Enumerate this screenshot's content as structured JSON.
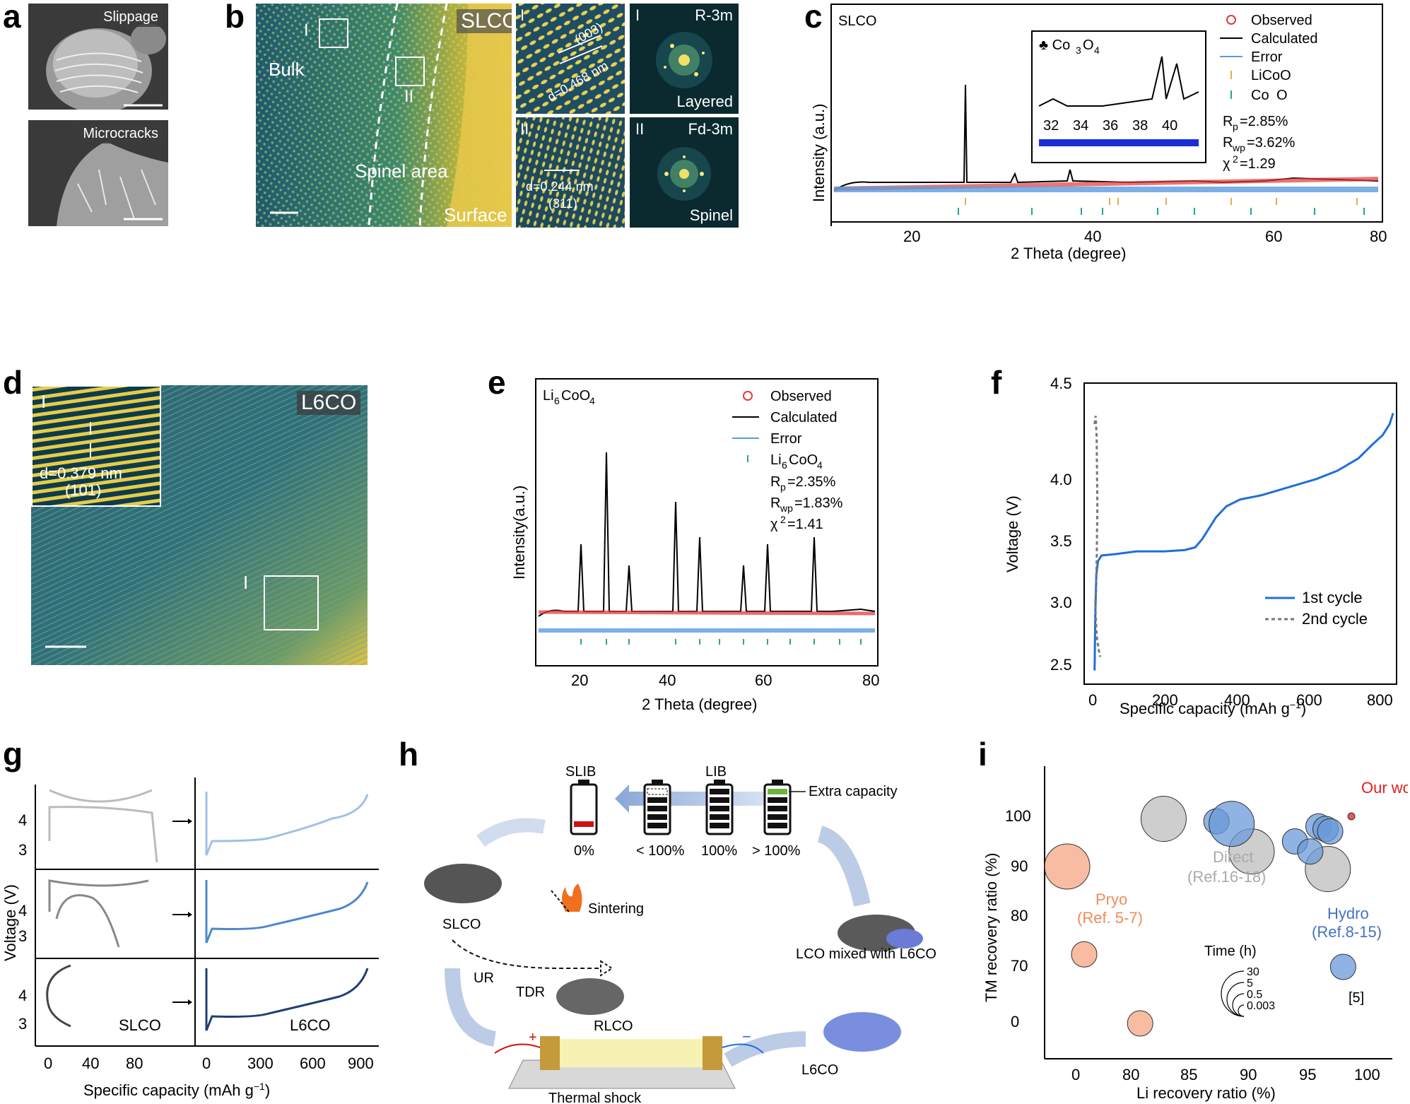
{
  "panels": {
    "a": {
      "letter": "a",
      "top_label": "Slippage",
      "bottom_label": "Microcracks"
    },
    "b": {
      "letter": "b",
      "main_label": "SLCO",
      "bulk": "Bulk",
      "spinel_area": "Spinel area",
      "surface": "Surface",
      "box_I": "I",
      "box_II": "II",
      "inset_I": {
        "roman": "I",
        "plane": "(003)",
        "d": "d=0.468 nm"
      },
      "inset_II": {
        "roman": "II",
        "plane": "(311)",
        "d": "d=0.244 nm"
      },
      "fft_I": {
        "roman": "I",
        "group": "R-3m",
        "type": "Layered"
      },
      "fft_II": {
        "roman": "II",
        "group": "Fd-3m",
        "type": "Spinel"
      }
    },
    "c": {
      "letter": "c",
      "sample": "SLCO",
      "ylabel": "Intensity (a.u.)",
      "xlabel": "2 Theta (degree)",
      "legend": [
        "Observed",
        "Calculated",
        "Error",
        "LiCoO",
        "Co",
        "O"
      ],
      "stats": [
        "R",
        "p",
        "=2.85%",
        "R",
        "wp",
        "=3.62%",
        "χ",
        "2",
        "=1.29"
      ],
      "inset_title": "♣ Co",
      "inset_title_sub1": "3",
      "inset_title_O": "O",
      "inset_title_sub2": "4",
      "inset_xticks": [
        "32",
        "34",
        "36",
        "38",
        "40"
      ],
      "xticks": [
        "20",
        "40",
        "60",
        "80"
      ],
      "club": "♣"
    },
    "d": {
      "letter": "d",
      "main_label": "L6CO",
      "inset_roman": "I",
      "d": "d=0.379 nm",
      "plane": "(101)",
      "box_label": "I"
    },
    "e": {
      "letter": "e",
      "sample": "Li",
      "sample_sub1": "6",
      "sample_mid": "CoO",
      "sample_sub2": "4",
      "ylabel": "Intensity(a.u.)",
      "xlabel": "2 Theta (degree)",
      "legend": [
        "Observed",
        "Calculated",
        "Error"
      ],
      "legend_phase": "Li",
      "legend_phase_sub1": "6",
      "legend_phase_mid": "CoO",
      "legend_phase_sub2": "4",
      "stats": [
        "R",
        "p",
        "=2.35%",
        "R",
        "wp",
        "=1.83%",
        "χ",
        "2",
        "=1.41"
      ],
      "xticks": [
        "20",
        "40",
        "60",
        "80"
      ]
    },
    "f": {
      "letter": "f",
      "ylabel": "Voltage (V)",
      "xlabel": "Specific capacity (mAh g",
      "xlabel_sup": "−1",
      "xlabel_end": ")",
      "legend": [
        "1st cycle",
        "2nd cycle"
      ],
      "xticks": [
        "0",
        "200",
        "400",
        "600",
        "800"
      ],
      "yticks": [
        "2.5",
        "3.0",
        "3.5",
        "4.0",
        "4.5"
      ]
    },
    "g": {
      "letter": "g",
      "ylabel": "Voltage (V)",
      "xlabel": "Specific capacity (mAh g",
      "xlabel_sup": "−1",
      "xlabel_end": ")",
      "left_xticks": [
        "0",
        "40",
        "80"
      ],
      "right_xticks": [
        "0",
        "300",
        "600",
        "900"
      ],
      "yticks": [
        "3",
        "4"
      ],
      "slco": "SLCO",
      "l6co": "L6CO"
    },
    "h": {
      "letter": "h",
      "slib": "SLIB",
      "lib": "LIB",
      "extra": "Extra capacity",
      "pct": [
        "0%",
        "< 100%",
        "100%",
        "> 100%"
      ],
      "slco": "SLCO",
      "sintering": "Sintering",
      "tdr": "TDR",
      "rlco": "RLCO",
      "ur": "UR",
      "mixed": "LCO mixed with L6CO",
      "l6co": "L6CO",
      "thermal": "Thermal shock",
      "plus": "+",
      "minus": "−"
    },
    "i": {
      "letter": "i",
      "ylabel": "TM recovery ratio (%)",
      "xlabel": "Li recovery ratio (%)",
      "our_work": "Our work",
      "direct": "Direct",
      "direct_ref": "(Ref.16-18)",
      "pryo": "Pryo",
      "pryo_ref": "(Ref. 5-7)",
      "hydro": "Hydro",
      "hydro_ref": "(Ref.8-15)",
      "ref5": "[5]",
      "time": "Time (h)",
      "time_values": [
        "30",
        "5",
        "0.5",
        "0.003"
      ],
      "xticks": [
        "0",
        "80",
        "85",
        "90",
        "95",
        "100"
      ],
      "yticks": [
        "0",
        "70",
        "80",
        "90",
        "100"
      ]
    }
  },
  "chart_data": [
    {
      "type": "scatter",
      "panel": "f",
      "xlabel": "Specific capacity (mAh g−1)",
      "ylabel": "Voltage (V)",
      "xlim": [
        -30,
        870
      ],
      "ylim": [
        2.3,
        4.5
      ],
      "series": [
        {
          "name": "1st cycle",
          "color": "#1f6fd6",
          "x": [
            0,
            2,
            5,
            10,
            20,
            60,
            120,
            200,
            260,
            290,
            310,
            330,
            350,
            380,
            420,
            480,
            560,
            640,
            700,
            760,
            800,
            830,
            850,
            860
          ],
          "y": [
            2.4,
            2.8,
            3.1,
            3.2,
            3.24,
            3.25,
            3.27,
            3.27,
            3.28,
            3.3,
            3.36,
            3.44,
            3.52,
            3.6,
            3.65,
            3.68,
            3.74,
            3.8,
            3.86,
            3.95,
            4.05,
            4.12,
            4.2,
            4.28
          ]
        },
        {
          "name": "2nd cycle",
          "color": "#777777",
          "x": [
            0,
            3,
            6,
            8,
            6,
            4,
            2,
            3,
            6,
            9,
            12,
            16
          ],
          "y": [
            4.2,
            4.26,
            4.1,
            3.6,
            3.2,
            3.0,
            2.9,
            2.8,
            2.65,
            2.6,
            2.55,
            2.5
          ]
        }
      ]
    },
    {
      "type": "scatter",
      "panel": "i",
      "xlabel": "Li recovery ratio (%)",
      "ylabel": "TM recovery ratio (%)",
      "groups": [
        {
          "name": "Pryo",
          "color": "#f4a582",
          "points": [
            {
              "x": 0,
              "y": 90,
              "t": 30
            },
            {
              "x": 3,
              "y": 72.5,
              "t": 5
            },
            {
              "x": 82,
              "y": 0,
              "t": 5
            }
          ]
        },
        {
          "name": "Direct",
          "color": "#bdbdbd",
          "points": [
            {
              "x": 84,
              "y": 99.5,
              "t": 30
            },
            {
              "x": 91.5,
              "y": 93,
              "t": 30
            },
            {
              "x": 98,
              "y": 89.5,
              "t": 30
            }
          ]
        },
        {
          "name": "Hydro",
          "color": "#6a9ad8",
          "points": [
            {
              "x": 88.5,
              "y": 99,
              "t": 5
            },
            {
              "x": 89.8,
              "y": 98.5,
              "t": 30
            },
            {
              "x": 95.2,
              "y": 95,
              "t": 5
            },
            {
              "x": 96.5,
              "y": 93,
              "t": 5
            },
            {
              "x": 97.2,
              "y": 98,
              "t": 5
            },
            {
              "x": 97.8,
              "y": 97.5,
              "t": 5
            },
            {
              "x": 98.2,
              "y": 97,
              "t": 5
            },
            {
              "x": 99.3,
              "y": 70,
              "t": 5
            }
          ]
        },
        {
          "name": "Our work",
          "color": "#e0201b",
          "points": [
            {
              "x": 100,
              "y": 100,
              "t": 0.003
            }
          ]
        }
      ]
    }
  ]
}
